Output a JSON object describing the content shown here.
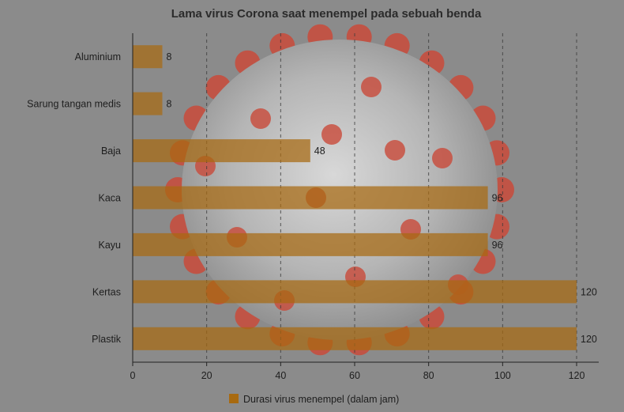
{
  "chart_data": {
    "type": "bar",
    "orientation": "horizontal",
    "title": "Lama virus Corona saat menempel pada sebuah benda",
    "categories": [
      "Aluminium",
      "Sarung tangan medis",
      "Baja",
      "Kaca",
      "Kayu",
      "Kertas",
      "Plastik"
    ],
    "series": [
      {
        "name": "Durasi virus menempel (dalam jam)",
        "values": [
          8,
          8,
          48,
          96,
          96,
          120,
          120
        ],
        "color": "#a86a10"
      }
    ],
    "value_labels": [
      "8",
      "8",
      "48",
      "96",
      "96",
      "120",
      "120"
    ],
    "xlim": [
      0,
      125
    ],
    "xticks": [
      0,
      20,
      40,
      60,
      80,
      100,
      120
    ],
    "xtick_labels": [
      "0",
      "20",
      "40",
      "60",
      "80",
      "100",
      "120"
    ],
    "grid": "vertical dashed",
    "legend": "bottom-center"
  },
  "background": {
    "description_icon": "coronavirus-illustration",
    "page_color": "#8a8a8a",
    "virus_body_color": "#b9b9b9",
    "spike_color": "#c94a3a"
  }
}
